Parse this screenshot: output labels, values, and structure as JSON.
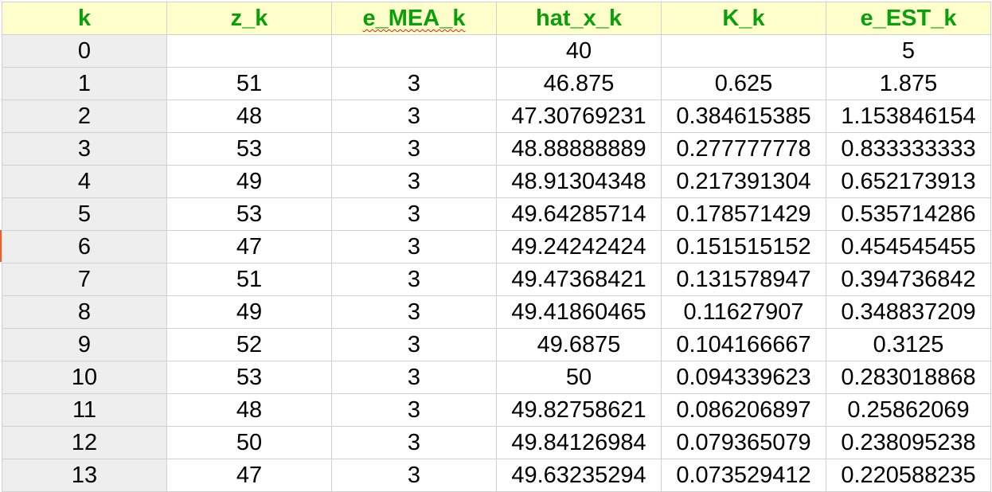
{
  "columns": [
    "k",
    "z_k",
    "e_MEA_k",
    "hat_x_k",
    "K_k",
    "e_EST_k"
  ],
  "rows": [
    [
      "0",
      "",
      "",
      "40",
      "",
      "5"
    ],
    [
      "1",
      "51",
      "3",
      "46.875",
      "0.625",
      "1.875"
    ],
    [
      "2",
      "48",
      "3",
      "47.30769231",
      "0.384615385",
      "1.153846154"
    ],
    [
      "3",
      "53",
      "3",
      "48.88888889",
      "0.277777778",
      "0.833333333"
    ],
    [
      "4",
      "49",
      "3",
      "48.91304348",
      "0.217391304",
      "0.652173913"
    ],
    [
      "5",
      "53",
      "3",
      "49.64285714",
      "0.178571429",
      "0.535714286"
    ],
    [
      "6",
      "47",
      "3",
      "49.24242424",
      "0.151515152",
      "0.454545455"
    ],
    [
      "7",
      "51",
      "3",
      "49.47368421",
      "0.131578947",
      "0.394736842"
    ],
    [
      "8",
      "49",
      "3",
      "49.41860465",
      "0.11627907",
      "0.348837209"
    ],
    [
      "9",
      "52",
      "3",
      "49.6875",
      "0.104166667",
      "0.3125"
    ],
    [
      "10",
      "53",
      "3",
      "50",
      "0.094339623",
      "0.283018868"
    ],
    [
      "11",
      "48",
      "3",
      "49.82758621",
      "0.086206897",
      "0.25862069"
    ],
    [
      "12",
      "50",
      "3",
      "49.84126984",
      "0.079365079",
      "0.238095238"
    ],
    [
      "13",
      "47",
      "3",
      "49.63235294",
      "0.073529412",
      "0.220588235"
    ]
  ],
  "colors": {
    "header_bg": "#ffffcc",
    "header_text": "#0aa00a",
    "first_col_bg": "#eeeeee",
    "grid_line": "#d0d0d0",
    "row_marker": "#e8632c"
  }
}
